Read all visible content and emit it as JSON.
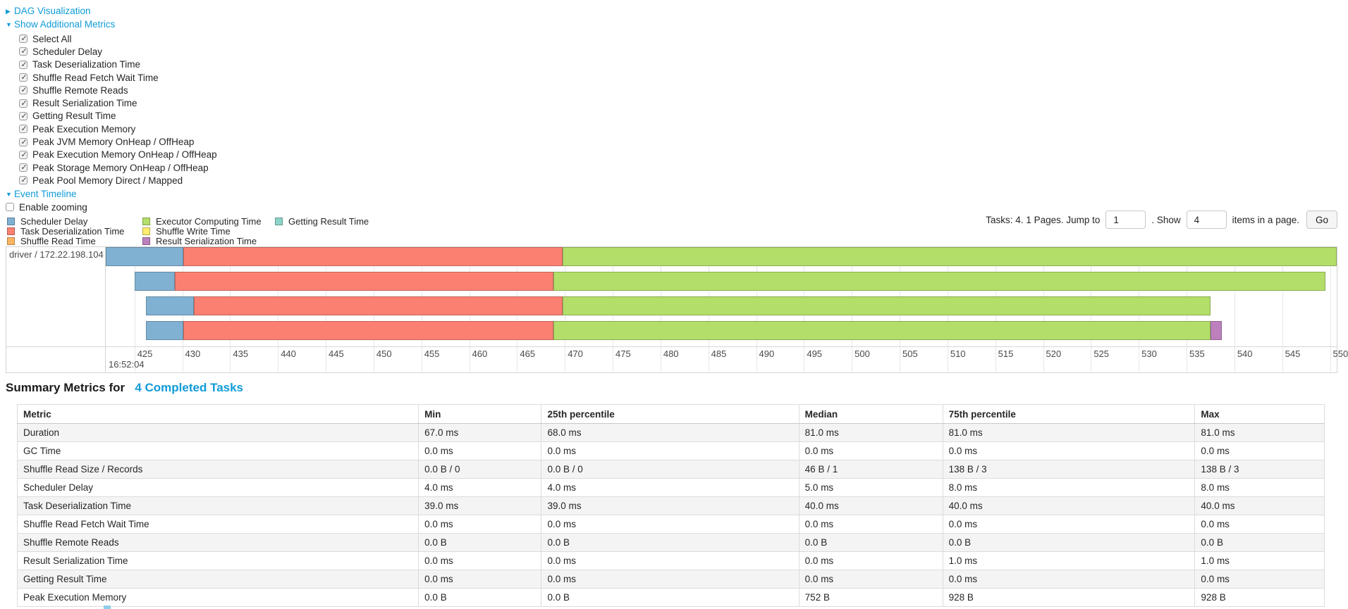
{
  "colors": {
    "link": "#0f9bd8",
    "table_stripe": "#f4f4f4"
  },
  "section_links": {
    "dag": "DAG Visualization",
    "additional_metrics": "Show Additional Metrics",
    "event_timeline": "Event Timeline"
  },
  "metric_checkboxes": [
    {
      "label": "Select All",
      "checked": true
    },
    {
      "label": "Scheduler Delay",
      "checked": true
    },
    {
      "label": "Task Deserialization Time",
      "checked": true
    },
    {
      "label": "Shuffle Read Fetch Wait Time",
      "checked": true
    },
    {
      "label": "Shuffle Remote Reads",
      "checked": true
    },
    {
      "label": "Result Serialization Time",
      "checked": true
    },
    {
      "label": "Getting Result Time",
      "checked": true
    },
    {
      "label": "Peak Execution Memory",
      "checked": true
    },
    {
      "label": "Peak JVM Memory OnHeap / OffHeap",
      "checked": true
    },
    {
      "label": "Peak Execution Memory OnHeap / OffHeap",
      "checked": true
    },
    {
      "label": "Peak Storage Memory OnHeap / OffHeap",
      "checked": true
    },
    {
      "label": "Peak Pool Memory Direct / Mapped",
      "checked": true
    }
  ],
  "enable_zooming": {
    "label": "Enable zooming",
    "checked": false
  },
  "pagination": {
    "prefix": "Tasks: 4. 1 Pages. Jump to",
    "jump_value": "1",
    "mid": ". Show",
    "show_value": "4",
    "suffix": "items in a page.",
    "go": "Go"
  },
  "chart_data": {
    "type": "timeline",
    "row_label": "driver / 172.22.198.104",
    "axis": {
      "min": 422,
      "max": 550.7,
      "tick_start": 425,
      "tick_step": 5,
      "tick_end": 550,
      "base_label": "16:52:04"
    },
    "legend": [
      {
        "key": "scheduler_delay",
        "label": "Scheduler Delay",
        "color": "#80B1D3",
        "column": 0
      },
      {
        "key": "task_deserialization",
        "label": "Task Deserialization Time",
        "color": "#FB8072",
        "column": 0
      },
      {
        "key": "shuffle_read",
        "label": "Shuffle Read Time",
        "color": "#FDB462",
        "column": 0
      },
      {
        "key": "executor_computing",
        "label": "Executor Computing Time",
        "color": "#B3DE69",
        "column": 1
      },
      {
        "key": "shuffle_write",
        "label": "Shuffle Write Time",
        "color": "#FFED6F",
        "column": 1
      },
      {
        "key": "result_serialization",
        "label": "Result Serialization Time",
        "color": "#BC80BD",
        "column": 1
      },
      {
        "key": "getting_result",
        "label": "Getting Result Time",
        "color": "#8DD3C7",
        "column": 2
      }
    ],
    "tasks": [
      {
        "start": 422.0,
        "segments": [
          {
            "key": "scheduler_delay",
            "end": 430.1
          },
          {
            "key": "task_deserialization",
            "end": 469.8
          },
          {
            "key": "executor_computing",
            "end": 551.0
          }
        ]
      },
      {
        "start": 425.0,
        "segments": [
          {
            "key": "scheduler_delay",
            "end": 429.2
          },
          {
            "key": "task_deserialization",
            "end": 468.8
          },
          {
            "key": "executor_computing",
            "end": 549.5
          }
        ]
      },
      {
        "start": 426.2,
        "segments": [
          {
            "key": "scheduler_delay",
            "end": 431.2
          },
          {
            "key": "task_deserialization",
            "end": 469.8
          },
          {
            "key": "executor_computing",
            "end": 537.5
          }
        ]
      },
      {
        "start": 426.2,
        "segments": [
          {
            "key": "scheduler_delay",
            "end": 430.1
          },
          {
            "key": "task_deserialization",
            "end": 468.8
          },
          {
            "key": "executor_computing",
            "end": 537.5
          },
          {
            "key": "result_serialization",
            "end": 538.7
          }
        ]
      }
    ]
  },
  "summary": {
    "heading_prefix": "Summary Metrics for",
    "heading_link": "4 Completed Tasks",
    "table": {
      "headers": [
        "Metric",
        "Min",
        "25th percentile",
        "Median",
        "75th percentile",
        "Max"
      ],
      "col_widths_pct": [
        30.7,
        9.4,
        19.7,
        11.0,
        19.3,
        9.9
      ],
      "rows": [
        [
          "Duration",
          "67.0 ms",
          "68.0 ms",
          "81.0 ms",
          "81.0 ms",
          "81.0 ms"
        ],
        [
          "GC Time",
          "0.0 ms",
          "0.0 ms",
          "0.0 ms",
          "0.0 ms",
          "0.0 ms"
        ],
        [
          "Shuffle Read Size / Records",
          "0.0 B / 0",
          "0.0 B / 0",
          "46 B / 1",
          "138 B / 3",
          "138 B / 3"
        ],
        [
          "Scheduler Delay",
          "4.0 ms",
          "4.0 ms",
          "5.0 ms",
          "8.0 ms",
          "8.0 ms"
        ],
        [
          "Task Deserialization Time",
          "39.0 ms",
          "39.0 ms",
          "40.0 ms",
          "40.0 ms",
          "40.0 ms"
        ],
        [
          "Shuffle Read Fetch Wait Time",
          "0.0 ms",
          "0.0 ms",
          "0.0 ms",
          "0.0 ms",
          "0.0 ms"
        ],
        [
          "Shuffle Remote Reads",
          "0.0 B",
          "0.0 B",
          "0.0 B",
          "0.0 B",
          "0.0 B"
        ],
        [
          "Result Serialization Time",
          "0.0 ms",
          "0.0 ms",
          "0.0 ms",
          "1.0 ms",
          "1.0 ms"
        ],
        [
          "Getting Result Time",
          "0.0 ms",
          "0.0 ms",
          "0.0 ms",
          "0.0 ms",
          "0.0 ms"
        ],
        [
          "Peak Execution Memory",
          "0.0 B",
          "0.0 B",
          "752 B",
          "928 B",
          "928 B"
        ]
      ]
    }
  }
}
